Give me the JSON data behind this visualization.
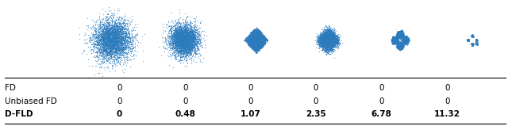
{
  "scatter_color": "#2B7BBD",
  "scatter_alpha": 0.7,
  "scatter_point_size": 0.8,
  "n_points": 4000,
  "row_labels": [
    "FD",
    "Unbiased FD",
    "D-FLD"
  ],
  "row_bold": [
    false,
    false,
    true
  ],
  "col_values": [
    [
      "0",
      "0",
      "0",
      "0",
      "0",
      "0"
    ],
    [
      "0",
      "0",
      "0",
      "0",
      "0",
      "0"
    ],
    [
      "0",
      "0.48",
      "1.07",
      "2.35",
      "6.78",
      "11.32"
    ]
  ],
  "background_color": "#ffffff",
  "table_fontsize": 7.5,
  "line_color": "#333333",
  "n_cols": 6
}
